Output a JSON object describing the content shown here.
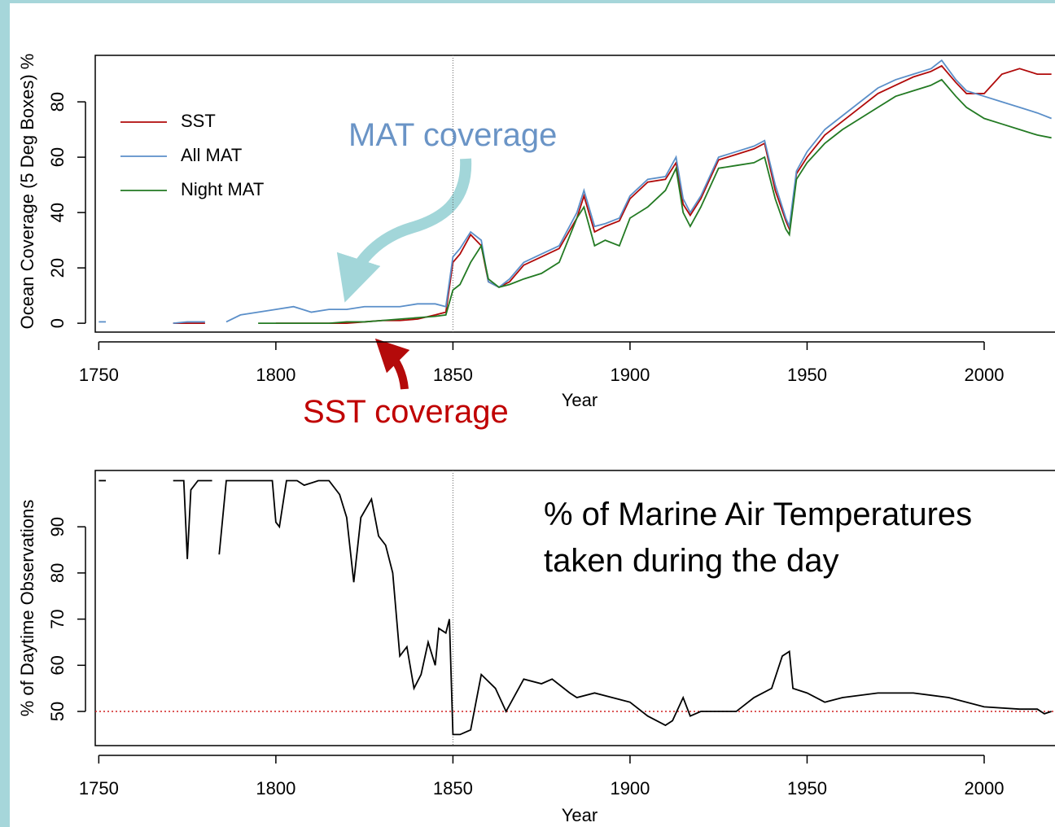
{
  "chart_data": [
    {
      "type": "line",
      "x_label": "Year",
      "y_label": "Ocean Coverage (5 Deg Boxes) %",
      "x": [
        1750,
        1752,
        1760,
        1771,
        1775,
        1780,
        1783,
        1786,
        1790,
        1795,
        1800,
        1805,
        1810,
        1815,
        1820,
        1825,
        1830,
        1835,
        1840,
        1845,
        1848,
        1850,
        1852,
        1855,
        1858,
        1860,
        1863,
        1866,
        1870,
        1875,
        1880,
        1885,
        1887,
        1890,
        1893,
        1897,
        1900,
        1905,
        1910,
        1913,
        1915,
        1917,
        1920,
        1925,
        1930,
        1935,
        1938,
        1941,
        1944,
        1945,
        1947,
        1950,
        1955,
        1960,
        1965,
        1970,
        1975,
        1980,
        1985,
        1988,
        1992,
        1995,
        2000,
        2005,
        2010,
        2015,
        2019
      ],
      "series": [
        {
          "name": "SST",
          "color": "#b00a0a",
          "values": [
            null,
            null,
            null,
            0,
            0,
            0,
            null,
            null,
            null,
            null,
            0,
            0,
            0,
            0,
            0,
            0.5,
            1,
            1,
            1.5,
            3,
            4,
            22,
            25,
            32,
            28,
            15,
            13,
            15,
            21,
            24,
            27,
            38,
            46,
            33,
            35,
            37,
            45,
            51,
            52,
            58,
            43,
            39,
            45,
            59,
            61,
            63,
            65,
            48,
            37,
            34,
            54,
            60,
            68,
            73,
            78,
            83,
            86,
            89,
            91,
            93,
            87,
            83,
            83,
            90,
            92,
            90,
            90
          ]
        },
        {
          "name": "All MAT",
          "color": "#5b8fc9",
          "values": [
            0.5,
            0.5,
            null,
            0,
            0.5,
            0.5,
            null,
            0.5,
            3,
            4,
            5,
            6,
            4,
            5,
            5,
            6,
            6,
            6,
            7,
            7,
            6,
            24,
            27,
            33,
            30,
            15,
            13,
            16,
            22,
            25,
            28,
            40,
            48,
            35,
            36,
            38,
            46,
            52,
            53,
            60,
            45,
            40,
            46,
            60,
            62,
            64,
            66,
            50,
            38,
            35,
            55,
            62,
            70,
            75,
            80,
            85,
            88,
            90,
            92,
            95,
            88,
            84,
            82,
            80,
            78,
            76,
            74
          ]
        },
        {
          "name": "Night MAT",
          "color": "#237a23",
          "values": [
            null,
            null,
            null,
            null,
            null,
            null,
            null,
            null,
            null,
            0,
            0,
            0,
            0,
            0,
            0.5,
            0.5,
            1,
            1.5,
            2,
            2.5,
            3,
            12,
            14,
            22,
            28,
            16,
            13,
            14,
            16,
            18,
            22,
            38,
            42,
            28,
            30,
            28,
            38,
            42,
            48,
            56,
            40,
            35,
            42,
            56,
            57,
            58,
            60,
            45,
            34,
            32,
            52,
            58,
            65,
            70,
            74,
            78,
            82,
            84,
            86,
            88,
            82,
            78,
            74,
            72,
            70,
            68,
            67
          ]
        }
      ],
      "xlim": [
        1749,
        2020
      ],
      "xticks": [
        1750,
        1800,
        1850,
        1900,
        1950,
        2000
      ],
      "ylim": [
        -3.2,
        96.8
      ],
      "yticks": [
        0,
        20,
        40,
        60,
        80
      ],
      "vline": 1850,
      "legend": "top-left",
      "annotations": [
        {
          "text": "MAT coverage",
          "color": "#6a94c6"
        },
        {
          "text": "SST coverage",
          "color": "#c00000"
        }
      ]
    },
    {
      "type": "line",
      "x_label": "Year",
      "y_label": "% of Daytime Observations",
      "x": [
        1750,
        1752,
        1760,
        1771,
        1774,
        1775,
        1776,
        1778,
        1782,
        1783,
        1784,
        1786,
        1795,
        1799,
        1800,
        1801,
        1803,
        1806,
        1808,
        1812,
        1815,
        1818,
        1820,
        1822,
        1824,
        1827,
        1829,
        1831,
        1833,
        1835,
        1837,
        1839,
        1841,
        1843,
        1845,
        1846,
        1848,
        1849,
        1850,
        1852,
        1855,
        1858,
        1862,
        1865,
        1870,
        1875,
        1878,
        1883,
        1885,
        1890,
        1895,
        1900,
        1905,
        1910,
        1912,
        1915,
        1917,
        1920,
        1925,
        1930,
        1935,
        1940,
        1943,
        1945,
        1946,
        1950,
        1955,
        1960,
        1970,
        1980,
        1990,
        2000,
        2010,
        2015,
        2017,
        2019
      ],
      "values": [
        100,
        100,
        null,
        100,
        100,
        83,
        98,
        100,
        100,
        null,
        84,
        100,
        100,
        100,
        91,
        90,
        100,
        100,
        99,
        100,
        100,
        97,
        92,
        78,
        92,
        96,
        88,
        86,
        80,
        62,
        64,
        55,
        58,
        65,
        60,
        68,
        67,
        70,
        45,
        45,
        46,
        58,
        55,
        50,
        57,
        56,
        57,
        54,
        53,
        54,
        53,
        52,
        49,
        47,
        48,
        53,
        49,
        50,
        50,
        50,
        53,
        55,
        62,
        63,
        55,
        54,
        52,
        53,
        54,
        54,
        53,
        51,
        50.5,
        50.5,
        49.5,
        50
      ],
      "color": "#000000",
      "xlim": [
        1749,
        2020
      ],
      "xticks": [
        1750,
        1800,
        1850,
        1900,
        1950,
        2000
      ],
      "ylim": [
        42.6,
        102.2
      ],
      "yticks": [
        50,
        60,
        70,
        80,
        90
      ],
      "vline": 1850,
      "hline": 50,
      "annotations": [
        {
          "text": "% of Marine Air Temperatures taken during the day",
          "color": "#000000"
        }
      ]
    }
  ]
}
